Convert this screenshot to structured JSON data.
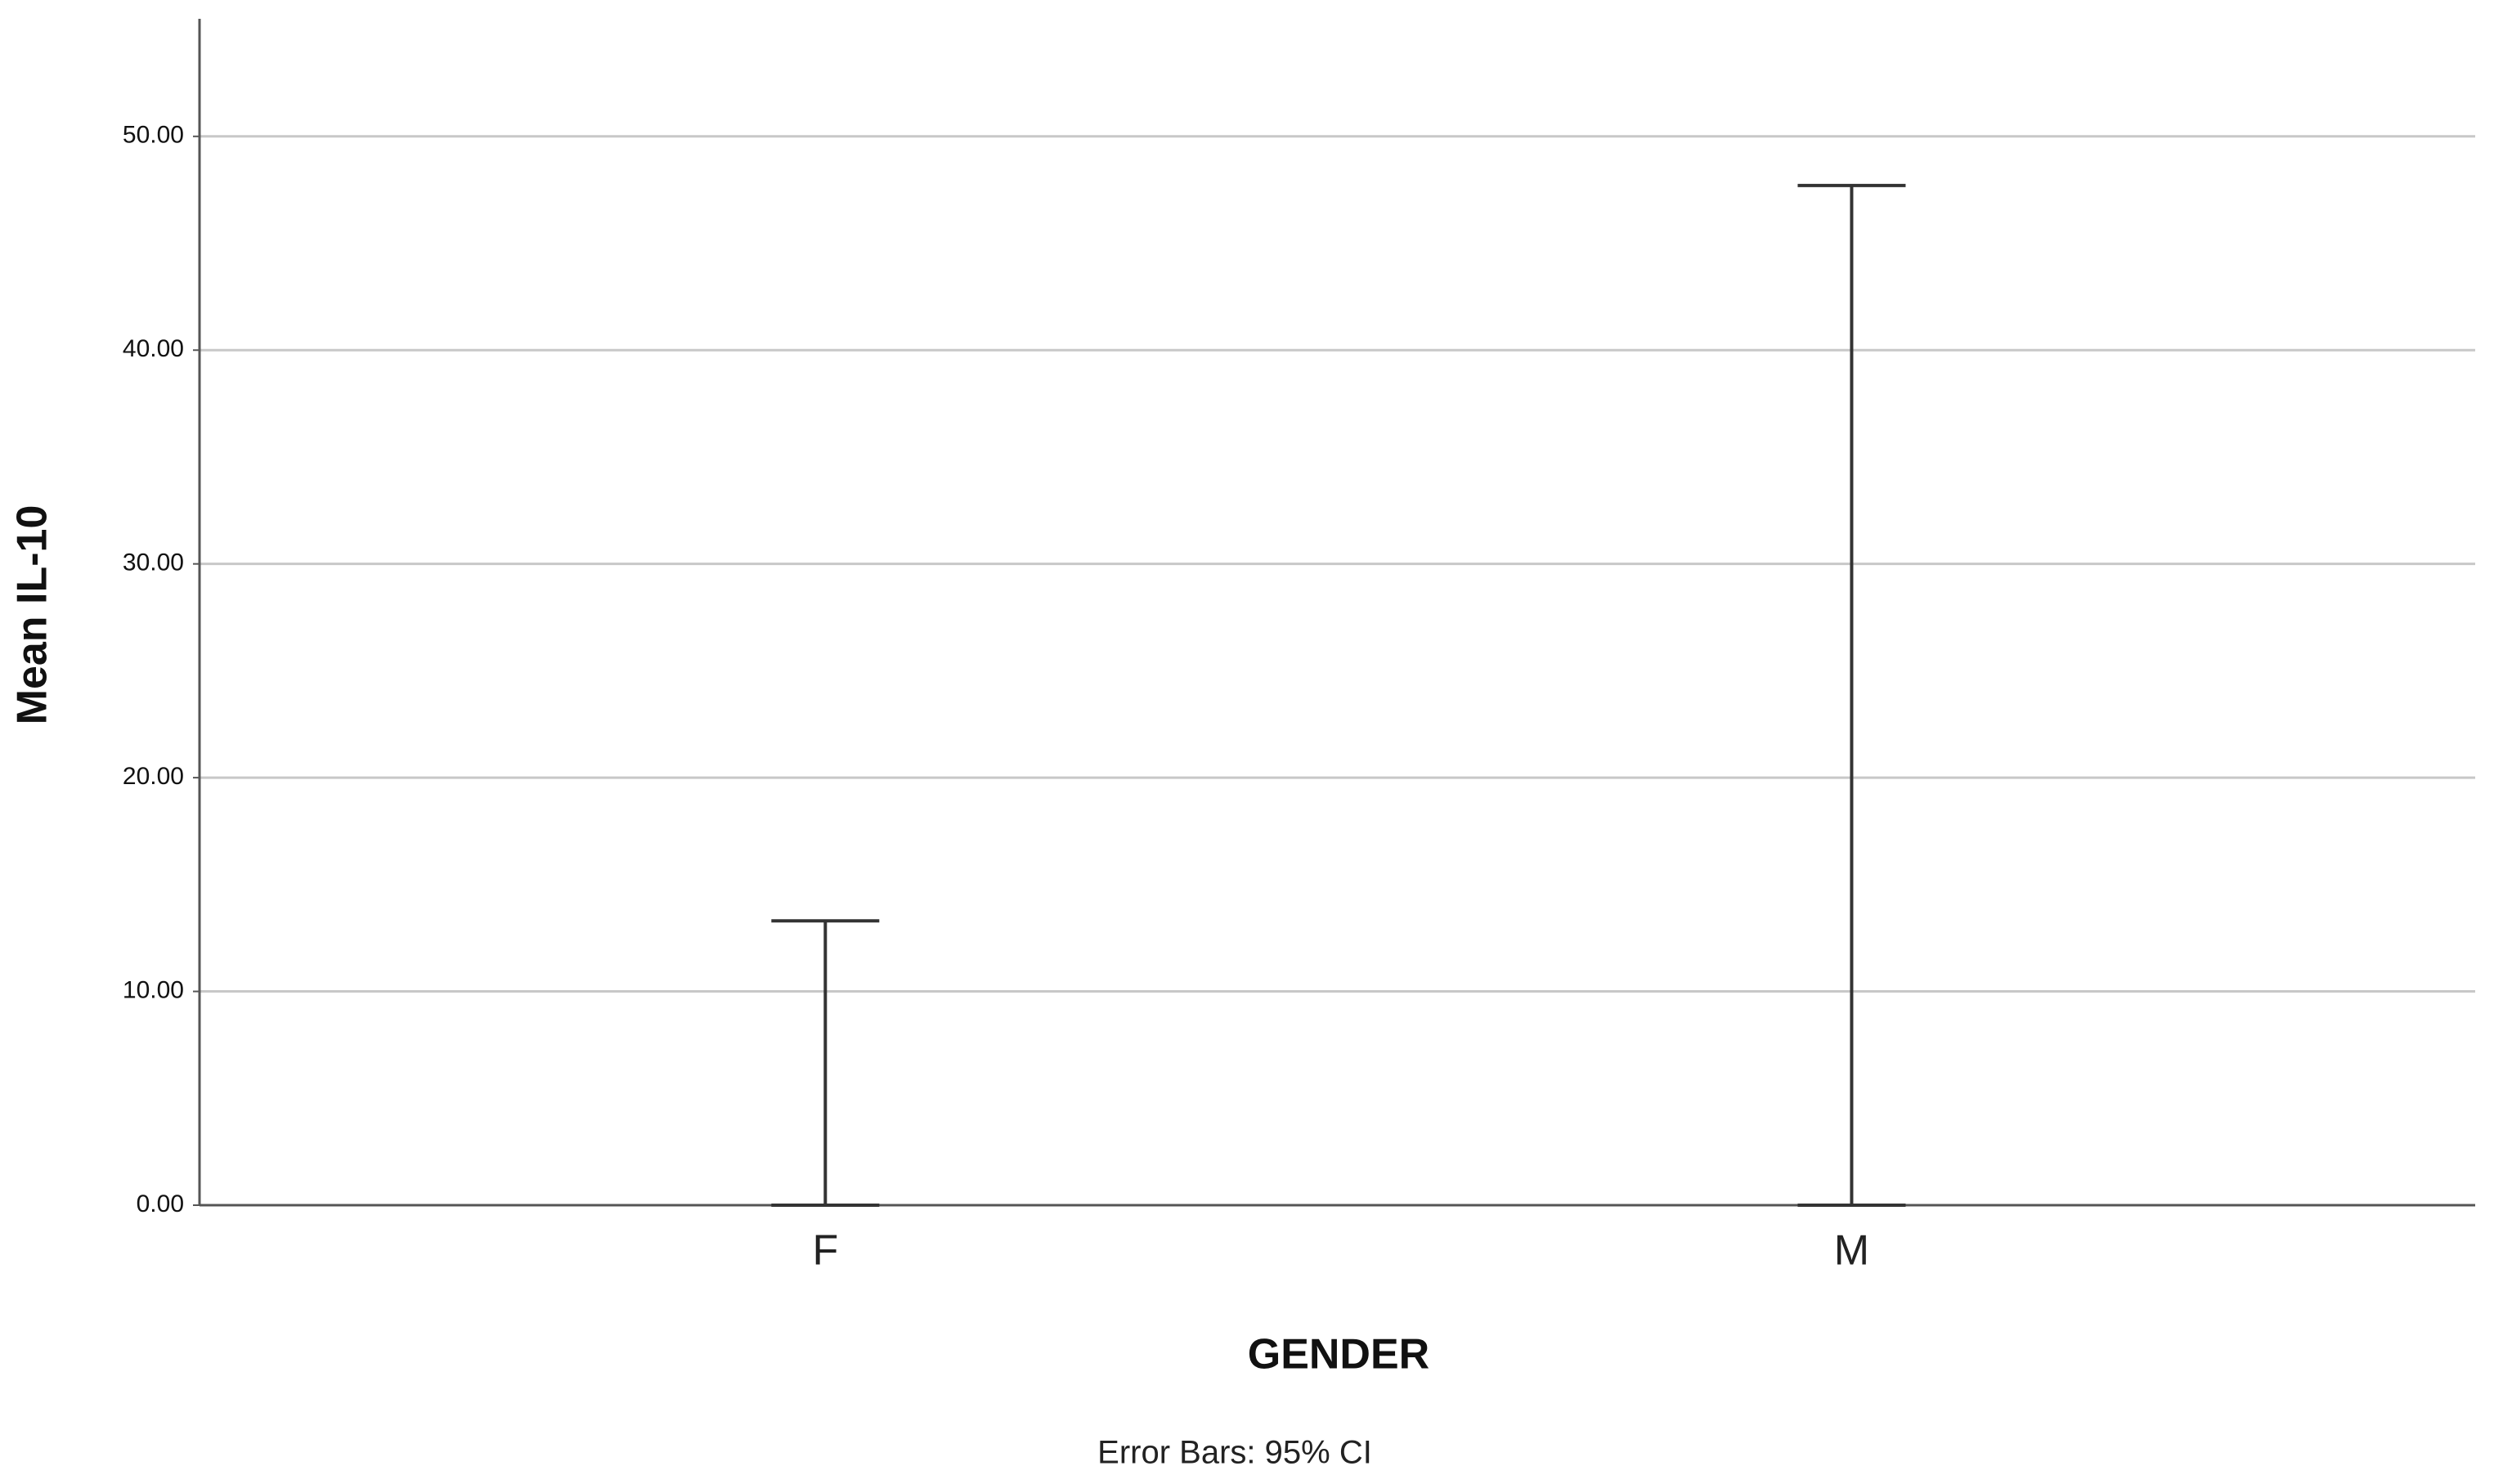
{
  "chart_data": {
    "type": "errorbar",
    "x_label": "GENDER",
    "y_label": "Mean IL-10",
    "note": "Error Bars: 95% CI",
    "categories": [
      "F",
      "M"
    ],
    "lower": [
      0,
      0
    ],
    "upper": [
      13.3,
      47.7
    ],
    "color": "#333333",
    "ylim": [
      0,
      55.5
    ],
    "yticks": [
      {
        "value": 0,
        "label": "0.00"
      },
      {
        "value": 10,
        "label": "10.00"
      },
      {
        "value": 20,
        "label": "20.00"
      },
      {
        "value": 30,
        "label": "30.00"
      },
      {
        "value": 40,
        "label": "40.00"
      },
      {
        "value": 50,
        "label": "50.00"
      }
    ],
    "grid": true
  }
}
